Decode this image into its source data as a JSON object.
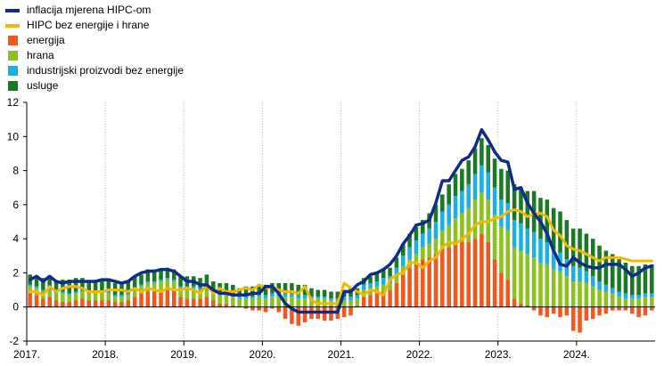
{
  "chart_data": {
    "type": "bar",
    "ylim": [
      -2,
      12
    ],
    "y_ticks": [
      -2,
      0,
      2,
      4,
      6,
      8,
      10,
      12
    ],
    "x_tick_labels": [
      "2017.",
      "2018.",
      "2019.",
      "2020.",
      "2021.",
      "2022.",
      "2023.",
      "2024."
    ],
    "grid": "vertical-dotted-at-years",
    "legend_position": "top-left",
    "colors": {
      "hicp": "#0d2c8c",
      "core": "#f5b800",
      "energija": "#f2581e",
      "hrana": "#8cc21c",
      "industrijski": "#1ab0e6",
      "usluge": "#1a7a23"
    },
    "legend": [
      {
        "label": "inflacija mjerena HIPC-om",
        "kind": "line",
        "color": "#0d2c8c"
      },
      {
        "label": "HIPC bez energije i hrane",
        "kind": "line",
        "color": "#f5b800"
      },
      {
        "label": "energija",
        "kind": "box",
        "color": "#f2581e"
      },
      {
        "label": "hrana",
        "kind": "box",
        "color": "#8cc21c"
      },
      {
        "label": "industrijski proizvodi bez energije",
        "kind": "box",
        "color": "#1ab0e6"
      },
      {
        "label": "usluge",
        "kind": "box",
        "color": "#1a7a23"
      }
    ],
    "x": [
      "2017-01",
      "2017-02",
      "2017-03",
      "2017-04",
      "2017-05",
      "2017-06",
      "2017-07",
      "2017-08",
      "2017-09",
      "2017-10",
      "2017-11",
      "2017-12",
      "2018-01",
      "2018-02",
      "2018-03",
      "2018-04",
      "2018-05",
      "2018-06",
      "2018-07",
      "2018-08",
      "2018-09",
      "2018-10",
      "2018-11",
      "2018-12",
      "2019-01",
      "2019-02",
      "2019-03",
      "2019-04",
      "2019-05",
      "2019-06",
      "2019-07",
      "2019-08",
      "2019-09",
      "2019-10",
      "2019-11",
      "2019-12",
      "2020-01",
      "2020-02",
      "2020-03",
      "2020-04",
      "2020-05",
      "2020-06",
      "2020-07",
      "2020-08",
      "2020-09",
      "2020-10",
      "2020-11",
      "2020-12",
      "2021-01",
      "2021-02",
      "2021-03",
      "2021-04",
      "2021-05",
      "2021-06",
      "2021-07",
      "2021-08",
      "2021-09",
      "2021-10",
      "2021-11",
      "2021-12",
      "2022-01",
      "2022-02",
      "2022-03",
      "2022-04",
      "2022-05",
      "2022-06",
      "2022-07",
      "2022-08",
      "2022-09",
      "2022-10",
      "2022-11",
      "2022-12",
      "2023-01",
      "2023-02",
      "2023-03",
      "2023-04",
      "2023-05",
      "2023-06",
      "2023-07",
      "2023-08",
      "2023-09",
      "2023-10",
      "2023-11",
      "2023-12",
      "2024-01",
      "2024-02",
      "2024-03",
      "2024-04",
      "2024-05",
      "2024-06",
      "2024-07",
      "2024-08",
      "2024-09",
      "2024-10",
      "2024-11",
      "2024-12"
    ],
    "series": [
      {
        "name": "energija",
        "values": [
          0.8,
          0.7,
          0.5,
          0.6,
          0.4,
          0.3,
          0.3,
          0.4,
          0.5,
          0.4,
          0.4,
          0.4,
          0.4,
          0.3,
          0.3,
          0.4,
          0.6,
          0.8,
          0.9,
          0.9,
          1.0,
          1.1,
          1.0,
          0.6,
          0.5,
          0.5,
          0.5,
          0.6,
          0.4,
          0.2,
          0.2,
          0.1,
          0.0,
          -0.1,
          -0.2,
          -0.2,
          -0.3,
          -0.1,
          -0.3,
          -0.7,
          -1.0,
          -1.1,
          -0.9,
          -0.7,
          -0.7,
          -0.8,
          -0.8,
          -0.7,
          -0.6,
          -0.5,
          0.1,
          0.6,
          0.7,
          0.8,
          0.9,
          1.0,
          1.4,
          1.9,
          2.3,
          2.5,
          2.8,
          2.9,
          3.1,
          3.4,
          3.5,
          3.7,
          3.8,
          3.8,
          4.0,
          4.3,
          3.8,
          2.8,
          2.0,
          1.6,
          0.5,
          0.2,
          0.1,
          -0.2,
          -0.5,
          -0.6,
          -0.4,
          -0.6,
          -0.5,
          -1.4,
          -1.5,
          -0.8,
          -0.7,
          -0.5,
          -0.4,
          -0.2,
          -0.2,
          -0.2,
          -0.4,
          -0.6,
          -0.5,
          -0.2
        ]
      },
      {
        "name": "hrana",
        "values": [
          0.4,
          0.4,
          0.4,
          0.4,
          0.4,
          0.5,
          0.4,
          0.4,
          0.4,
          0.4,
          0.4,
          0.4,
          0.4,
          0.3,
          0.3,
          0.3,
          0.4,
          0.4,
          0.5,
          0.5,
          0.5,
          0.5,
          0.5,
          0.5,
          0.6,
          0.6,
          0.5,
          0.6,
          0.5,
          0.5,
          0.5,
          0.5,
          0.5,
          0.5,
          0.5,
          0.6,
          0.5,
          0.6,
          0.6,
          0.6,
          0.6,
          0.5,
          0.5,
          0.5,
          0.5,
          0.5,
          0.4,
          0.4,
          0.4,
          0.4,
          0.4,
          0.4,
          0.4,
          0.4,
          0.4,
          0.4,
          0.4,
          0.5,
          0.5,
          0.6,
          0.7,
          0.8,
          0.9,
          1.1,
          1.3,
          1.5,
          1.7,
          2.0,
          2.3,
          2.4,
          2.5,
          2.6,
          2.7,
          2.9,
          3.0,
          3.1,
          3.0,
          2.9,
          2.6,
          2.5,
          2.2,
          2.1,
          1.8,
          1.5,
          1.5,
          1.4,
          1.2,
          1.0,
          0.9,
          0.8,
          0.6,
          0.5,
          0.5,
          0.5,
          0.6,
          0.6
        ]
      },
      {
        "name": "industrijski proizvodi bez energije",
        "values": [
          0.1,
          0.1,
          0.1,
          0.1,
          0.1,
          0.1,
          0.1,
          0.1,
          0.1,
          0.1,
          0.1,
          0.1,
          0.1,
          0.1,
          0.1,
          0.1,
          0.1,
          0.1,
          0.1,
          0.1,
          0.1,
          0.1,
          0.1,
          0.1,
          0.1,
          0.1,
          0.1,
          0.1,
          0.1,
          0.1,
          0.1,
          0.1,
          0.1,
          0.1,
          0.1,
          0.1,
          0.2,
          0.2,
          0.2,
          0.2,
          0.2,
          0.2,
          0.2,
          0.1,
          0.1,
          0.1,
          0.1,
          0.1,
          0.2,
          0.2,
          0.2,
          0.3,
          0.3,
          0.3,
          0.4,
          0.4,
          0.5,
          0.6,
          0.7,
          0.8,
          0.8,
          0.9,
          1.0,
          1.1,
          1.2,
          1.3,
          1.3,
          1.4,
          1.5,
          1.6,
          1.6,
          1.6,
          1.6,
          1.6,
          1.6,
          1.6,
          1.5,
          1.5,
          1.4,
          1.3,
          1.2,
          1.1,
          1.0,
          0.9,
          0.8,
          0.7,
          0.6,
          0.5,
          0.4,
          0.3,
          0.3,
          0.3,
          0.2,
          0.2,
          0.2,
          0.2
        ]
      },
      {
        "name": "usluge",
        "values": [
          0.6,
          0.6,
          0.7,
          0.6,
          0.6,
          0.7,
          0.8,
          0.8,
          0.7,
          0.6,
          0.6,
          0.6,
          0.7,
          0.7,
          0.7,
          0.7,
          0.7,
          0.6,
          0.7,
          0.7,
          0.6,
          0.6,
          0.6,
          0.6,
          0.6,
          0.6,
          0.6,
          0.6,
          0.5,
          0.6,
          0.6,
          0.6,
          0.5,
          0.6,
          0.6,
          0.6,
          0.6,
          0.6,
          0.6,
          0.6,
          0.6,
          0.6,
          0.6,
          0.5,
          0.4,
          0.4,
          0.4,
          0.4,
          0.4,
          0.5,
          0.4,
          0.4,
          0.4,
          0.5,
          0.5,
          0.5,
          0.6,
          0.7,
          0.8,
          0.8,
          0.8,
          0.9,
          1.0,
          1.0,
          1.2,
          1.3,
          1.3,
          1.4,
          1.5,
          1.6,
          1.6,
          1.7,
          1.8,
          1.9,
          2.1,
          2.1,
          2.2,
          2.4,
          2.4,
          2.5,
          2.4,
          2.4,
          2.3,
          2.2,
          2.3,
          2.2,
          2.2,
          2.1,
          2.0,
          2.0,
          1.9,
          1.8,
          1.7,
          1.7,
          1.7,
          1.7
        ]
      },
      {
        "name": "inflacija mjerena HIPC-om",
        "kind": "line",
        "values": [
          1.6,
          1.8,
          1.5,
          1.8,
          1.5,
          1.4,
          1.5,
          1.5,
          1.5,
          1.5,
          1.5,
          1.6,
          1.6,
          1.5,
          1.4,
          1.5,
          1.8,
          2.0,
          2.1,
          2.1,
          2.2,
          2.2,
          2.1,
          1.8,
          1.5,
          1.5,
          1.3,
          1.3,
          1.0,
          0.8,
          0.8,
          0.7,
          0.7,
          0.7,
          0.8,
          0.8,
          1.2,
          1.2,
          0.8,
          0.2,
          -0.1,
          -0.3,
          -0.3,
          -0.3,
          -0.3,
          -0.3,
          -0.3,
          -0.3,
          0.9,
          0.9,
          1.3,
          1.5,
          1.9,
          2.0,
          2.2,
          2.5,
          3.0,
          3.7,
          4.2,
          4.8,
          4.9,
          5.1,
          6.1,
          7.4,
          7.4,
          8.0,
          8.6,
          8.8,
          9.4,
          10.4,
          9.8,
          9.1,
          8.6,
          8.5,
          6.9,
          7.0,
          6.1,
          5.5,
          5.0,
          4.3,
          3.3,
          2.5,
          2.4,
          2.9,
          2.6,
          2.4,
          2.3,
          2.3,
          2.5,
          2.5,
          2.5,
          2.2,
          1.8,
          2.0,
          2.3,
          2.4
        ]
      },
      {
        "name": "HIPC bez energije i hrane",
        "kind": "line",
        "values": [
          0.9,
          0.9,
          0.7,
          1.2,
          0.9,
          1.1,
          1.2,
          1.2,
          1.1,
          0.9,
          0.9,
          0.9,
          1.0,
          1.0,
          1.0,
          0.9,
          1.1,
          0.9,
          1.1,
          1.0,
          0.9,
          1.1,
          1.0,
          1.0,
          1.1,
          1.0,
          0.8,
          1.3,
          0.8,
          1.1,
          0.9,
          0.9,
          1.0,
          1.1,
          1.0,
          1.3,
          1.1,
          1.2,
          1.0,
          0.9,
          0.9,
          0.8,
          1.2,
          0.4,
          0.2,
          0.2,
          0.2,
          0.2,
          1.4,
          1.1,
          0.9,
          0.7,
          1.0,
          0.9,
          0.7,
          1.6,
          1.9,
          2.0,
          2.6,
          2.6,
          2.3,
          2.7,
          2.9,
          3.5,
          3.8,
          3.7,
          4.0,
          4.3,
          4.8,
          5.0,
          5.0,
          5.2,
          5.3,
          5.6,
          5.7,
          5.6,
          5.3,
          5.5,
          5.5,
          5.3,
          4.5,
          4.2,
          3.6,
          3.4,
          3.3,
          3.1,
          2.9,
          2.7,
          2.9,
          2.9,
          2.9,
          2.8,
          2.7,
          2.7,
          2.7,
          2.7
        ]
      }
    ]
  }
}
